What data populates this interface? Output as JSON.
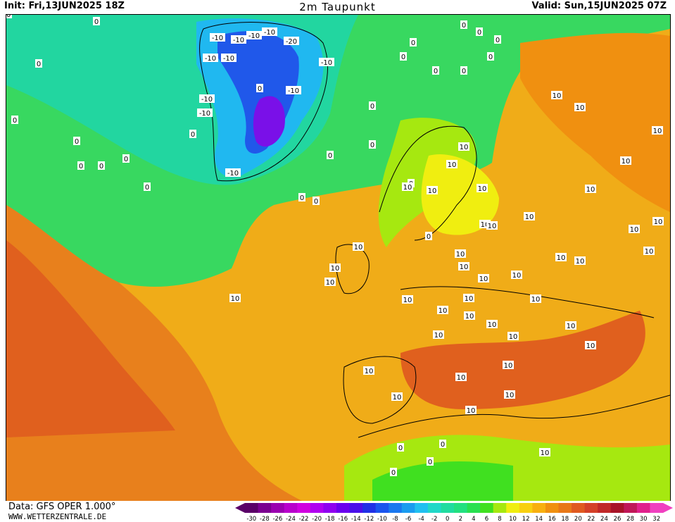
{
  "header": {
    "init": "Init: Fri,13JUN2025 18Z",
    "title": "2m Taupunkt",
    "valid": "Valid: Sun,15JUN2025 07Z"
  },
  "footer": {
    "data_source": "Data: GFS OPER 1.000°",
    "site": "WWW.WETTERZENTRALE.DE"
  },
  "legend": {
    "ticks": [
      "-30",
      "-28",
      "-26",
      "-24",
      "-22",
      "-20",
      "-18",
      "-16",
      "-14",
      "-12",
      "-10",
      "-8",
      "-6",
      "-4",
      "-2",
      "0",
      "2",
      "4",
      "6",
      "8",
      "10",
      "12",
      "14",
      "16",
      "18",
      "20",
      "22",
      "24",
      "26",
      "28",
      "30",
      "32"
    ],
    "colors": [
      "#5a0068",
      "#7a0090",
      "#9a00b0",
      "#b800cc",
      "#d000e0",
      "#b000f0",
      "#8f00f0",
      "#6a00ee",
      "#4a10ea",
      "#2030e6",
      "#1a55ee",
      "#1a78f0",
      "#1a9cf0",
      "#20c0f0",
      "#20d8c8",
      "#20dca0",
      "#22e080",
      "#28e050",
      "#40e020",
      "#a6e810",
      "#f0ee10",
      "#f8d010",
      "#f8b010",
      "#f09010",
      "#e87818",
      "#e05a20",
      "#d44028",
      "#c02828",
      "#a81428",
      "#c01858",
      "#e0208c",
      "#f040c0"
    ]
  },
  "map": {
    "contour_labels": [
      {
        "text": "0"
      },
      {
        "text": "0"
      },
      {
        "text": "0"
      },
      {
        "text": "0"
      },
      {
        "text": "0"
      },
      {
        "text": "0"
      },
      {
        "text": "0"
      },
      {
        "text": "0"
      },
      {
        "text": "0"
      },
      {
        "text": "0"
      },
      {
        "text": "0"
      },
      {
        "text": "0"
      },
      {
        "text": "0"
      },
      {
        "text": "0"
      },
      {
        "text": "0"
      },
      {
        "text": "0"
      },
      {
        "text": "0"
      },
      {
        "text": "0"
      },
      {
        "text": "0"
      },
      {
        "text": "0"
      },
      {
        "text": "0"
      },
      {
        "text": "0"
      },
      {
        "text": "0"
      },
      {
        "text": "0"
      },
      {
        "text": "0"
      },
      {
        "text": "0"
      },
      {
        "text": "0"
      },
      {
        "text": "0"
      },
      {
        "text": "0"
      },
      {
        "text": "-10"
      },
      {
        "text": "-10"
      },
      {
        "text": "-10"
      },
      {
        "text": "-10"
      },
      {
        "text": "-10"
      },
      {
        "text": "-10"
      },
      {
        "text": "-10"
      },
      {
        "text": "-10"
      },
      {
        "text": "-10"
      },
      {
        "text": "-10"
      },
      {
        "text": "-10"
      },
      {
        "text": "-20"
      },
      {
        "text": "10"
      },
      {
        "text": "10"
      },
      {
        "text": "10"
      },
      {
        "text": "10"
      },
      {
        "text": "10"
      },
      {
        "text": "10"
      },
      {
        "text": "10"
      },
      {
        "text": "10"
      },
      {
        "text": "10"
      },
      {
        "text": "10"
      },
      {
        "text": "10"
      },
      {
        "text": "10"
      },
      {
        "text": "10"
      },
      {
        "text": "10"
      },
      {
        "text": "10"
      },
      {
        "text": "10"
      },
      {
        "text": "10"
      },
      {
        "text": "10"
      },
      {
        "text": "10"
      },
      {
        "text": "10"
      },
      {
        "text": "10"
      },
      {
        "text": "10"
      },
      {
        "text": "10"
      },
      {
        "text": "10"
      },
      {
        "text": "10"
      },
      {
        "text": "10"
      },
      {
        "text": "10"
      },
      {
        "text": "10"
      },
      {
        "text": "10"
      },
      {
        "text": "10"
      },
      {
        "text": "10"
      },
      {
        "text": "10"
      },
      {
        "text": "10"
      },
      {
        "text": "10"
      },
      {
        "text": "10"
      },
      {
        "text": "10"
      },
      {
        "text": "10"
      },
      {
        "text": "10"
      },
      {
        "text": "10"
      },
      {
        "text": "10"
      },
      {
        "text": "10"
      },
      {
        "text": "10"
      },
      {
        "text": "10"
      },
      {
        "text": "10"
      }
    ]
  }
}
